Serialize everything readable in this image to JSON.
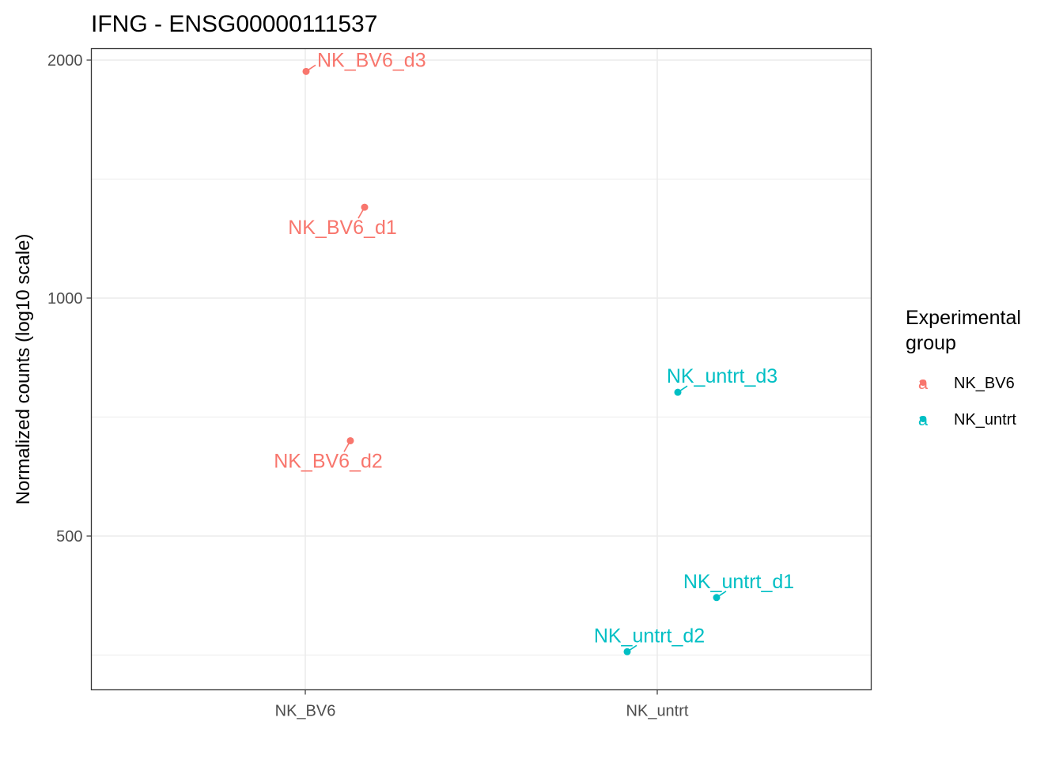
{
  "chart_data": {
    "type": "scatter",
    "title": "IFNG - ENSG00000111537",
    "xlabel": "",
    "ylabel": "Normalized counts (log10 scale)",
    "y_scale": "log10",
    "y_ticks": [
      500,
      1000,
      2000
    ],
    "y_tick_labels": [
      "500",
      "1000",
      "2000"
    ],
    "ylim": [
      330,
      2030
    ],
    "categories": [
      "NK_BV6",
      "NK_untrt"
    ],
    "grid": true,
    "legend": {
      "title": "Experimental group",
      "title_lines": [
        "Experimental",
        "group"
      ],
      "placement": "right",
      "key_glyph": "a",
      "entries": [
        {
          "name": "NK_BV6",
          "color": "#F8766D"
        },
        {
          "name": "NK_untrt",
          "color": "#00BFC4"
        }
      ]
    },
    "points": [
      {
        "label": "NK_BV6_d3",
        "group": "NK_BV6",
        "y": 1935,
        "label_side": "upper-right"
      },
      {
        "label": "NK_BV6_d1",
        "group": "NK_BV6",
        "y": 1303,
        "label_side": "lower-left"
      },
      {
        "label": "NK_BV6_d2",
        "group": "NK_BV6",
        "y": 660,
        "label_side": "lower-left"
      },
      {
        "label": "NK_untrt_d3",
        "group": "NK_untrt",
        "y": 760,
        "label_side": "upper-right"
      },
      {
        "label": "NK_untrt_d1",
        "group": "NK_untrt",
        "y": 418,
        "label_side": "upper-right"
      },
      {
        "label": "NK_untrt_d2",
        "group": "NK_untrt",
        "y": 357,
        "label_side": "upper-left"
      }
    ]
  }
}
